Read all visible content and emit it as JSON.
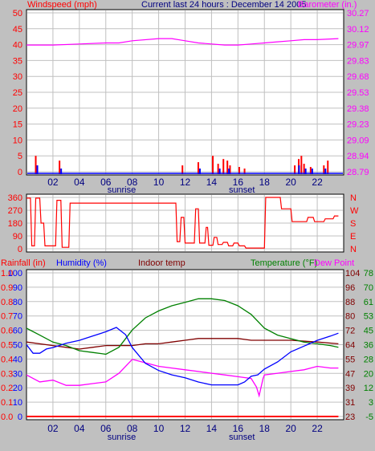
{
  "header": {
    "wind_label": "Windspeed (mph)",
    "title": "Current last 24 hours : December 14 2005",
    "baro_label": "Barometer (in.)"
  },
  "colors": {
    "bg": "#c0c0c0",
    "plot_bg": "#ffffff",
    "grid": "#c0c0c0",
    "wind": "#ff0000",
    "gust": "#0000ff",
    "baro": "#ff00ff",
    "direction": "#ff0000",
    "rain": "#ff0000",
    "humidity": "#0000ff",
    "indoor": "#800000",
    "temperature": "#008000",
    "dew_point": "#ff00ff",
    "time_label": "#000080"
  },
  "time_axis": {
    "ticks": [
      "02",
      "04",
      "06",
      "08",
      "10",
      "12",
      "14",
      "16",
      "18",
      "20",
      "22"
    ],
    "sunrise_label": "sunrise",
    "sunset_label": "sunset",
    "sunrise_hour": 7.2,
    "sunset_hour": 16.3
  },
  "bottom_header": {
    "rain_label": "Rainfall (in)",
    "humidity_label": "Humidity (%)",
    "indoor_label": "Indoor temp",
    "temperature_label": "Temperature (°F)",
    "dew_label": "Dew Point"
  },
  "chart_data": [
    {
      "type": "bar",
      "name": "wind",
      "ylabel": "Windspeed (mph)",
      "ylim": [
        0,
        50
      ],
      "y_ticks": [
        "0",
        "5",
        "10",
        "15",
        "20",
        "25",
        "30",
        "35",
        "40",
        "45",
        "50"
      ],
      "y2label": "Barometer (in.)",
      "y2lim": [
        28.79,
        30.27
      ],
      "y2_ticks": [
        "28.79",
        "28.94",
        "29.09",
        "29.23",
        "29.38",
        "29.53",
        "29.68",
        "29.83",
        "29.97",
        "30.12",
        "30.27"
      ],
      "x_range_hours": [
        0,
        24
      ],
      "wind_bars": [
        [
          0.7,
          5
        ],
        [
          2.5,
          3.5
        ],
        [
          11.8,
          2
        ],
        [
          13.0,
          3
        ],
        [
          14.1,
          5
        ],
        [
          14.5,
          2.5
        ],
        [
          14.9,
          4
        ],
        [
          15.2,
          3.5
        ],
        [
          15.4,
          2
        ],
        [
          16.1,
          1.5
        ],
        [
          16.5,
          1
        ],
        [
          20.3,
          2
        ],
        [
          20.6,
          4
        ],
        [
          20.8,
          5
        ],
        [
          21.0,
          2.5
        ],
        [
          21.5,
          1.5
        ],
        [
          22.5,
          2
        ],
        [
          22.8,
          3.5
        ]
      ],
      "gust_bars": [
        [
          0.7,
          2
        ],
        [
          2.5,
          1
        ],
        [
          13.0,
          1
        ],
        [
          14.5,
          1
        ],
        [
          15.2,
          1
        ],
        [
          20.5,
          2
        ],
        [
          21.0,
          1
        ],
        [
          21.5,
          1
        ],
        [
          22.5,
          1
        ]
      ],
      "barometer": [
        [
          0,
          29.97
        ],
        [
          2,
          29.97
        ],
        [
          4,
          29.98
        ],
        [
          6,
          29.99
        ],
        [
          7,
          29.99
        ],
        [
          8,
          30.01
        ],
        [
          10,
          30.03
        ],
        [
          11,
          30.03
        ],
        [
          12,
          30.01
        ],
        [
          13,
          29.99
        ],
        [
          14,
          29.98
        ],
        [
          15,
          29.97
        ],
        [
          16,
          29.97
        ],
        [
          17,
          29.98
        ],
        [
          18,
          29.99
        ],
        [
          19,
          30.0
        ],
        [
          20,
          30.01
        ],
        [
          21,
          30.02
        ],
        [
          22,
          30.02
        ],
        [
          23.6,
          30.03
        ]
      ]
    },
    {
      "type": "line",
      "name": "wind_direction",
      "y_ticks": [
        "0",
        "90",
        "180",
        "270",
        "360"
      ],
      "ylim": [
        0,
        360
      ],
      "y2_ticks": [
        "N",
        "W",
        "S",
        "E",
        "N"
      ],
      "points": [
        [
          0,
          355
        ],
        [
          0.3,
          355
        ],
        [
          0.4,
          20
        ],
        [
          0.6,
          20
        ],
        [
          0.7,
          355
        ],
        [
          1.0,
          355
        ],
        [
          1.1,
          180
        ],
        [
          1.3,
          180
        ],
        [
          1.4,
          20
        ],
        [
          2.2,
          20
        ],
        [
          2.3,
          340
        ],
        [
          2.6,
          340
        ],
        [
          2.7,
          10
        ],
        [
          3.2,
          10
        ],
        [
          3.3,
          320
        ],
        [
          11.3,
          320
        ],
        [
          11.4,
          50
        ],
        [
          11.6,
          50
        ],
        [
          11.7,
          220
        ],
        [
          11.9,
          220
        ],
        [
          12.0,
          40
        ],
        [
          12.7,
          40
        ],
        [
          12.8,
          280
        ],
        [
          13.0,
          280
        ],
        [
          13.1,
          40
        ],
        [
          13.5,
          40
        ],
        [
          13.6,
          150
        ],
        [
          13.7,
          150
        ],
        [
          13.8,
          25
        ],
        [
          14.1,
          25
        ],
        [
          14.2,
          80
        ],
        [
          14.4,
          80
        ],
        [
          14.5,
          30
        ],
        [
          14.8,
          30
        ],
        [
          14.9,
          45
        ],
        [
          15.2,
          45
        ],
        [
          15.3,
          20
        ],
        [
          15.6,
          20
        ],
        [
          15.7,
          40
        ],
        [
          16.0,
          40
        ],
        [
          16.1,
          20
        ],
        [
          16.5,
          20
        ],
        [
          16.6,
          5
        ],
        [
          18.0,
          5
        ],
        [
          18.1,
          360
        ],
        [
          19.2,
          360
        ],
        [
          19.3,
          280
        ],
        [
          20.0,
          280
        ],
        [
          20.1,
          190
        ],
        [
          21.2,
          190
        ],
        [
          21.3,
          220
        ],
        [
          21.7,
          220
        ],
        [
          21.8,
          190
        ],
        [
          22.5,
          190
        ],
        [
          22.6,
          210
        ],
        [
          23.2,
          210
        ],
        [
          23.3,
          230
        ],
        [
          23.6,
          230
        ]
      ]
    },
    {
      "type": "line",
      "name": "weather",
      "ylabel": "Rainfall (in) / Humidity (%)",
      "rain_ticks": [
        "0.0",
        "0.1",
        "0.2",
        "0.3",
        "0.4",
        "0.5",
        "0.6",
        "0.7",
        "0.8",
        "0.9",
        "1.0"
      ],
      "humidity_ticks": [
        "0",
        "10",
        "20",
        "30",
        "40",
        "50",
        "60",
        "70",
        "80",
        "90",
        "100"
      ],
      "indoor_ticks": [
        "23",
        "31",
        "39",
        "47",
        "55",
        "64",
        "72",
        "80",
        "88",
        "96",
        "104"
      ],
      "temp_ticks": [
        "-5",
        "3",
        "12",
        "20",
        "28",
        "36",
        "45",
        "53",
        "61",
        "70",
        "78"
      ],
      "temp_lim": [
        -5,
        78
      ],
      "humidity_lim": [
        0,
        100
      ],
      "rainfall": [
        [
          0,
          0
        ],
        [
          23.6,
          0
        ]
      ],
      "humidity": [
        [
          0,
          50
        ],
        [
          0.5,
          44
        ],
        [
          1,
          44
        ],
        [
          1.5,
          47
        ],
        [
          2,
          48
        ],
        [
          3,
          51
        ],
        [
          4,
          53
        ],
        [
          5,
          56
        ],
        [
          6,
          59
        ],
        [
          6.8,
          62
        ],
        [
          7.5,
          57
        ],
        [
          8,
          48
        ],
        [
          9,
          37
        ],
        [
          10,
          32
        ],
        [
          11,
          29
        ],
        [
          12,
          27
        ],
        [
          13,
          24
        ],
        [
          14,
          22
        ],
        [
          15,
          22
        ],
        [
          16,
          22
        ],
        [
          16.5,
          24
        ],
        [
          17,
          28
        ],
        [
          17.5,
          29
        ],
        [
          18,
          33
        ],
        [
          19,
          38
        ],
        [
          20,
          45
        ],
        [
          21,
          49
        ],
        [
          22,
          53
        ],
        [
          23,
          56
        ],
        [
          23.6,
          58
        ]
      ],
      "temperature": [
        [
          0,
          46
        ],
        [
          1,
          42
        ],
        [
          2,
          38
        ],
        [
          3,
          36
        ],
        [
          4,
          33
        ],
        [
          5,
          32
        ],
        [
          6,
          31
        ],
        [
          7,
          35
        ],
        [
          8,
          45
        ],
        [
          9,
          52
        ],
        [
          10,
          56
        ],
        [
          11,
          59
        ],
        [
          12,
          61
        ],
        [
          13,
          63
        ],
        [
          14,
          63
        ],
        [
          15,
          62
        ],
        [
          16,
          59
        ],
        [
          17,
          54
        ],
        [
          18,
          46
        ],
        [
          19,
          42
        ],
        [
          20,
          40
        ],
        [
          21,
          38
        ],
        [
          22,
          37
        ],
        [
          23,
          36
        ],
        [
          23.6,
          35
        ]
      ],
      "dew_point": [
        [
          0,
          19
        ],
        [
          1,
          15
        ],
        [
          2,
          16
        ],
        [
          3,
          13
        ],
        [
          4,
          13
        ],
        [
          5,
          14
        ],
        [
          6,
          15
        ],
        [
          7,
          20
        ],
        [
          8,
          28
        ],
        [
          9,
          26
        ],
        [
          10,
          24
        ],
        [
          11,
          23
        ],
        [
          12,
          22
        ],
        [
          13,
          21
        ],
        [
          14,
          20
        ],
        [
          15,
          19
        ],
        [
          16,
          18
        ],
        [
          17,
          17
        ],
        [
          17.4,
          12
        ],
        [
          17.6,
          7
        ],
        [
          17.9,
          17
        ],
        [
          18,
          19
        ],
        [
          19,
          20
        ],
        [
          20,
          21
        ],
        [
          21,
          22
        ],
        [
          22,
          24
        ],
        [
          23,
          23
        ],
        [
          23.6,
          23
        ]
      ],
      "indoor_temp": [
        [
          0,
          65
        ],
        [
          2,
          63
        ],
        [
          3,
          62
        ],
        [
          4,
          61
        ],
        [
          5,
          62
        ],
        [
          6,
          63
        ],
        [
          7,
          63
        ],
        [
          8,
          63
        ],
        [
          9,
          64
        ],
        [
          10,
          64
        ],
        [
          11,
          65
        ],
        [
          12,
          66
        ],
        [
          13,
          67
        ],
        [
          14,
          67
        ],
        [
          16,
          67
        ],
        [
          17,
          66
        ],
        [
          18,
          66
        ],
        [
          20,
          66
        ],
        [
          22,
          65
        ],
        [
          23.6,
          64
        ]
      ]
    }
  ]
}
